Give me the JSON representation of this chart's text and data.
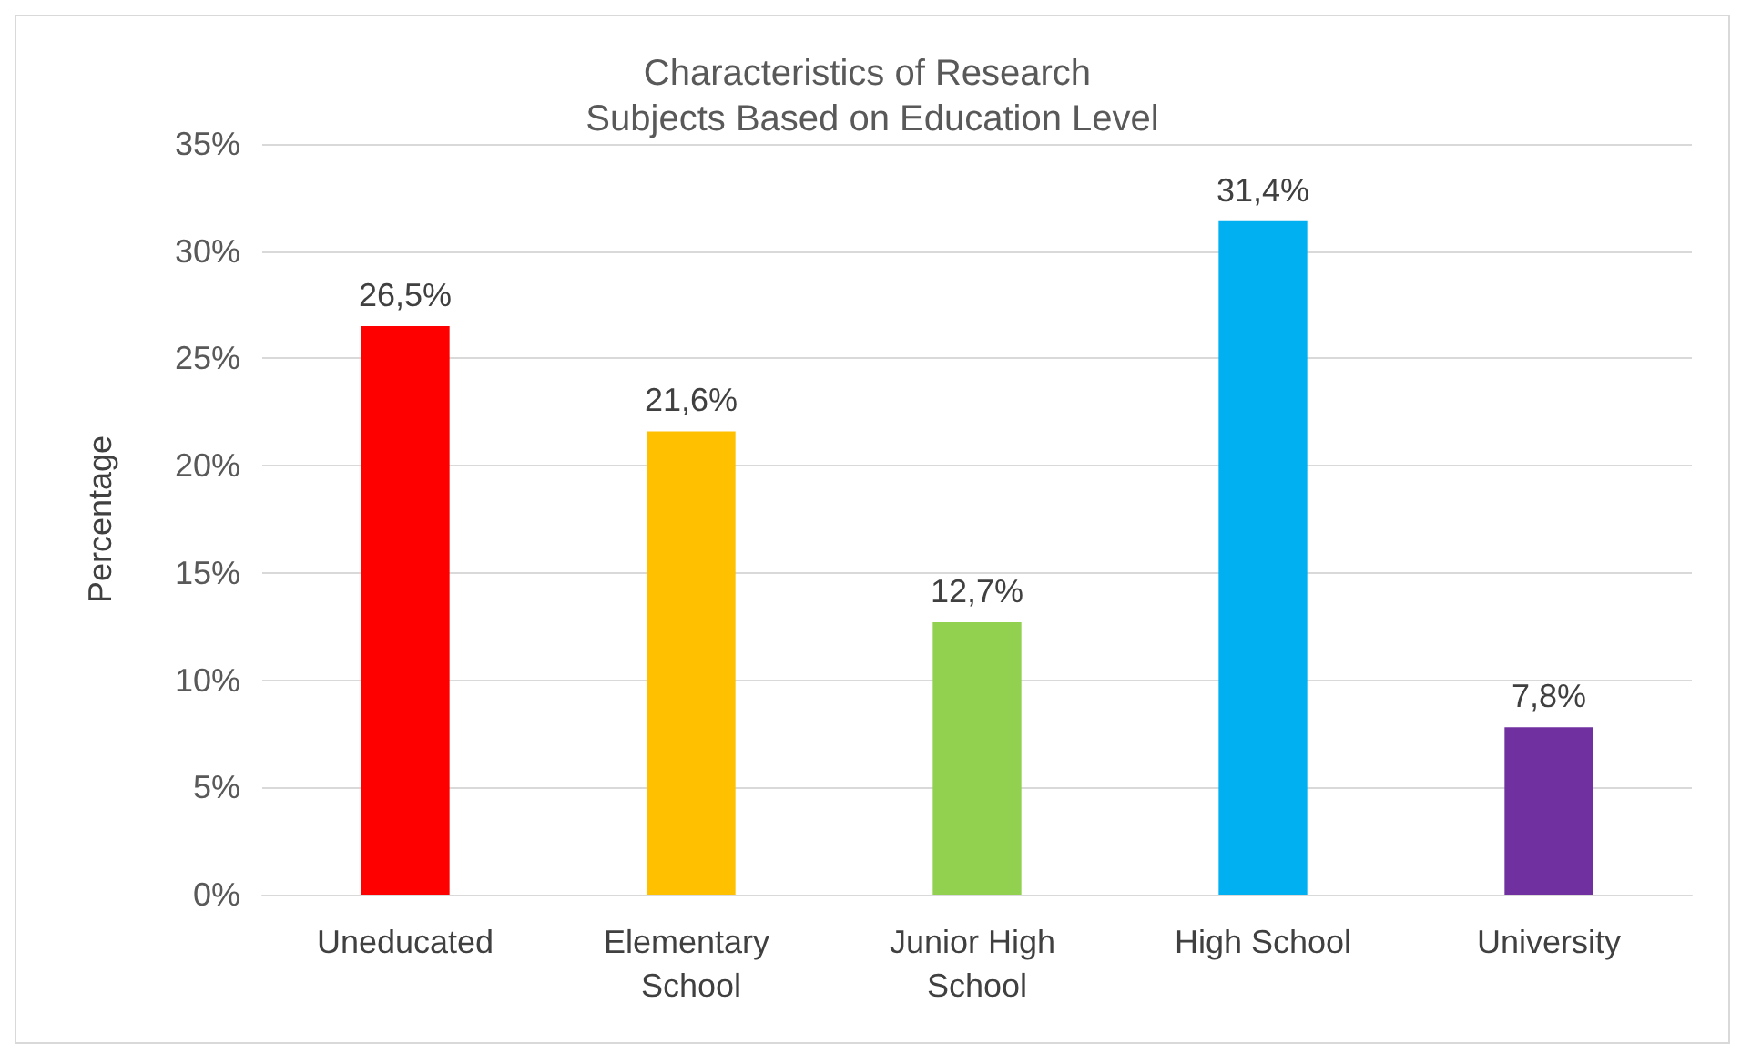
{
  "chart_data": {
    "type": "bar",
    "title": "Characteristics of Research Subjects Based on Education Level",
    "ylabel": "Percentage",
    "categories": [
      "Uneducated",
      "Elementary School",
      "Junior High School",
      "High School",
      "University"
    ],
    "values": [
      26.5,
      21.6,
      12.7,
      31.4,
      7.8
    ],
    "value_labels": [
      "26,5%",
      "21,6%",
      "12,7%",
      "31,4%",
      "7,8%"
    ],
    "colors": [
      "#ff0000",
      "#ffc000",
      "#92d050",
      "#00b0f0",
      "#7030a0"
    ],
    "ylim": [
      0,
      35
    ],
    "yticks": [
      {
        "value": 0,
        "label": "0%"
      },
      {
        "value": 5,
        "label": "5%"
      },
      {
        "value": 10,
        "label": "10%"
      },
      {
        "value": 15,
        "label": "15%"
      },
      {
        "value": 20,
        "label": "20%"
      },
      {
        "value": 25,
        "label": "25%"
      },
      {
        "value": 30,
        "label": "30%"
      },
      {
        "value": 35,
        "label": "35%"
      }
    ],
    "grid": "y"
  }
}
